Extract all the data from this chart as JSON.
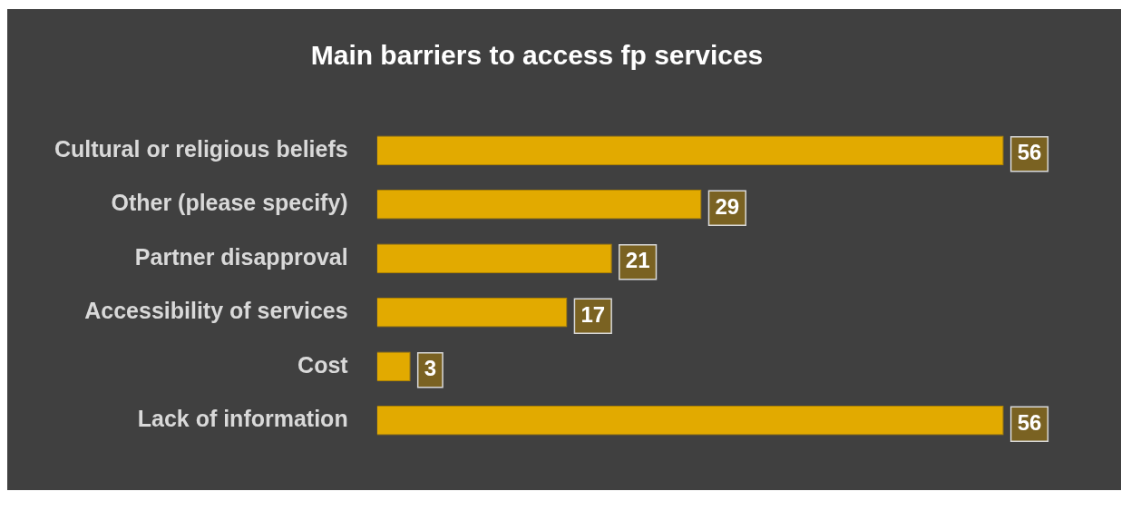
{
  "chart_data": {
    "type": "bar",
    "orientation": "horizontal",
    "title": "Main barriers to access fp services",
    "categories": [
      "Cultural or religious beliefs",
      "Other (please specify)",
      "Partner disapproval",
      "Accessibility of services",
      "Cost",
      "Lack of information"
    ],
    "values": [
      56,
      29,
      21,
      17,
      3,
      56
    ],
    "color": "#e2aa00",
    "data_labels": true,
    "grid": false,
    "legend": false
  }
}
